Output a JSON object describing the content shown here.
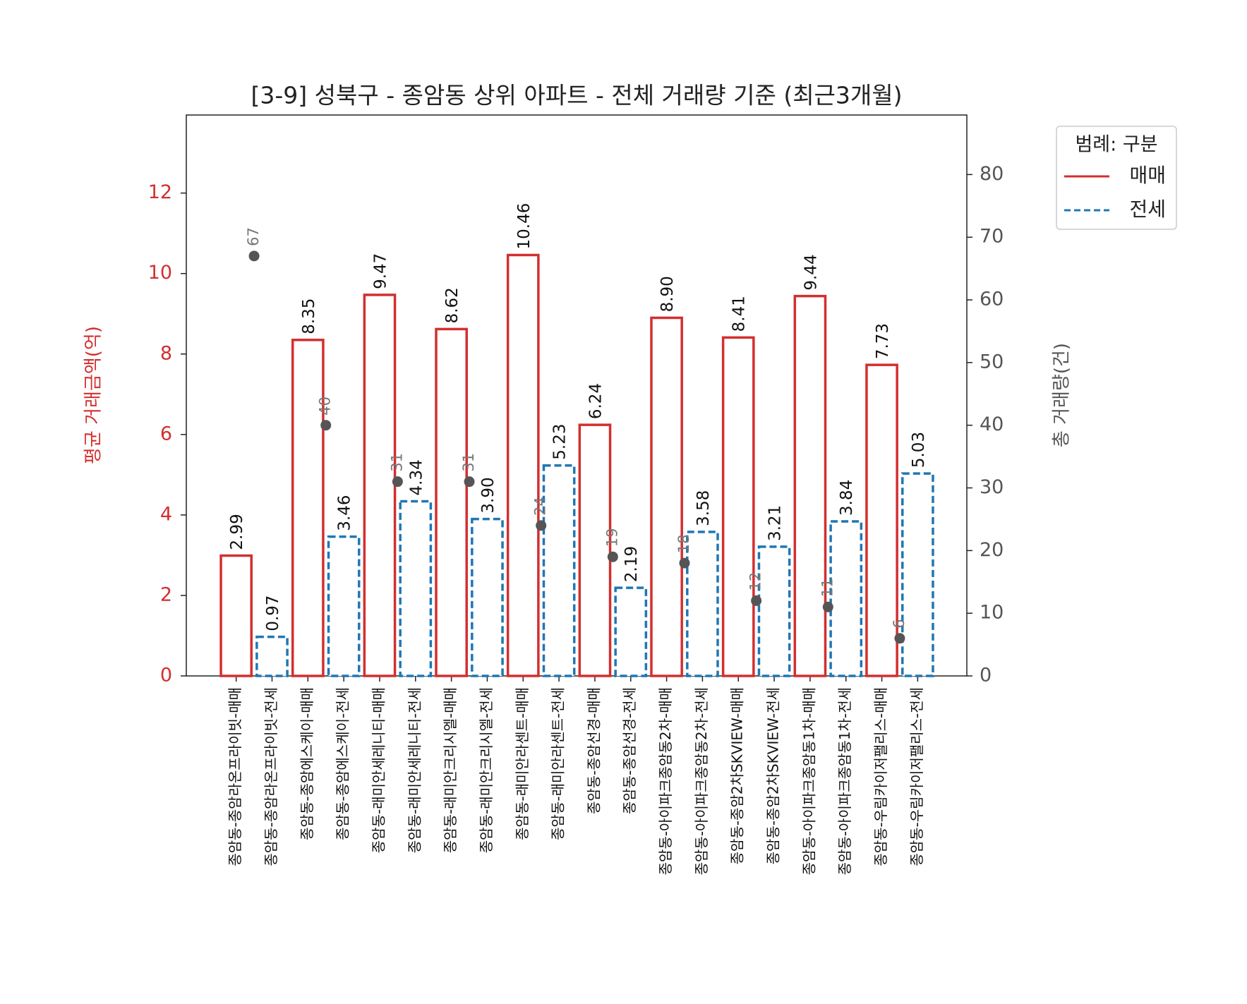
{
  "chart_data": {
    "type": "bar",
    "title": "[3-9] 성북구 - 종암동 상위 아파트 - 전체 거래량 기준 (최근3개월)",
    "ylabel": "평균 거래금액(억)",
    "y2label": "총 거래량(건)",
    "legend_title": "범례: 구분",
    "legend": "upper right outside",
    "categories": [
      "종암동-종암라온프라이빗-매매",
      "종암동-종암라온프라이빗-전세",
      "종암동-종암에스케이-매매",
      "종암동-종암에스케이-전세",
      "종암동-래미안세레니티-매매",
      "종암동-래미안세레니티-전세",
      "종암동-래미안크리시엘-매매",
      "종암동-래미안크리시엘-전세",
      "종암동-래미안라센트-매매",
      "종암동-래미안라센트-전세",
      "종암동-종암선경-매매",
      "종암동-종암선경-전세",
      "종암동-아이파크종암동2차-매매",
      "종암동-아이파크종암동2차-전세",
      "종암동-종암2차SKVIEW-매매",
      "종암동-종암2차SKVIEW-전세",
      "종암동-아이파크종암동1차-매매",
      "종암동-아이파크종암동1차-전세",
      "종암동-우림카이저팰리스-매매",
      "종암동-우림카이저팰리스-전세"
    ],
    "series": [
      {
        "name": "매매",
        "color": "#d32f2f",
        "dashed": false,
        "values": [
          2.99,
          null,
          8.35,
          null,
          9.47,
          null,
          8.62,
          null,
          10.46,
          null,
          6.24,
          null,
          8.9,
          null,
          8.41,
          null,
          9.44,
          null,
          7.73,
          null
        ],
        "value_labels": [
          "2.99",
          null,
          "8.35",
          null,
          "9.47",
          null,
          "8.62",
          null,
          "10.46",
          null,
          "6.24",
          null,
          "8.90",
          null,
          "8.41",
          null,
          "9.44",
          null,
          "7.73",
          null
        ]
      },
      {
        "name": "전세",
        "color": "#1f77b4",
        "dashed": true,
        "values": [
          null,
          0.97,
          null,
          3.46,
          null,
          4.34,
          null,
          3.9,
          null,
          5.23,
          null,
          2.19,
          null,
          3.58,
          null,
          3.21,
          null,
          3.84,
          null,
          5.03
        ],
        "value_labels": [
          null,
          "0.97",
          null,
          "3.46",
          null,
          "4.34",
          null,
          "3.90",
          null,
          "5.23",
          null,
          "2.19",
          null,
          "3.58",
          null,
          "3.21",
          null,
          "3.84",
          null,
          "5.03"
        ]
      }
    ],
    "counts": {
      "axis": "y2",
      "color": "#555555",
      "values": [
        67,
        40,
        31,
        31,
        24,
        19,
        18,
        12,
        11,
        6
      ]
    },
    "ylim": [
      0,
      13.94
    ],
    "yticks": [
      0,
      2,
      4,
      6,
      8,
      10,
      12
    ],
    "ycolor": "#d32f2f",
    "y2lim": [
      0,
      89.5
    ],
    "y2ticks": [
      0,
      10,
      20,
      30,
      40,
      50,
      60,
      70,
      80
    ],
    "y2color": "#555555"
  }
}
